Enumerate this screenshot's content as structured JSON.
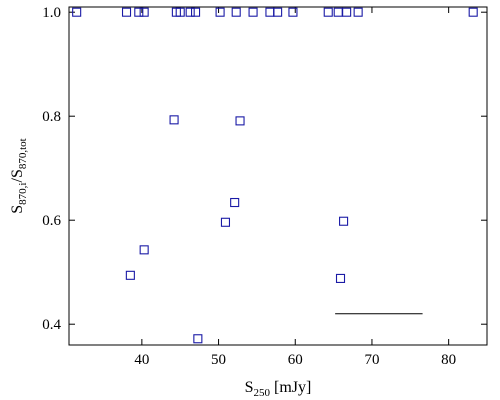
{
  "chart_data": {
    "type": "scatter",
    "xlabel": {
      "main": "S",
      "sub": "250",
      "tail": " [mJy]"
    },
    "ylabel": {
      "main1": "S",
      "sub1": "870,i",
      "mid": "/S",
      "sub2": "870,tot"
    },
    "xlim": [
      30.5,
      85
    ],
    "ylim": [
      0.36,
      1.01
    ],
    "xticks": [
      40,
      50,
      60,
      70,
      80
    ],
    "yticks": [
      0.4,
      0.6,
      0.8,
      1.0
    ],
    "xtick_labels": [
      "40",
      "50",
      "60",
      "70",
      "80"
    ],
    "ytick_labels": [
      "0.4",
      "0.6",
      "0.8",
      "1.0"
    ],
    "grid": false,
    "marker": "open-square",
    "colors": {
      "marker": "#1a1aa6",
      "axis": "#000000",
      "reference_line": "#000000"
    },
    "points": [
      {
        "x": 31.5,
        "y": 1.0
      },
      {
        "x": 38.0,
        "y": 1.0
      },
      {
        "x": 39.6,
        "y": 1.0
      },
      {
        "x": 40.3,
        "y": 1.0
      },
      {
        "x": 44.5,
        "y": 1.0
      },
      {
        "x": 45.0,
        "y": 1.0
      },
      {
        "x": 46.3,
        "y": 1.0
      },
      {
        "x": 47.0,
        "y": 1.0
      },
      {
        "x": 50.2,
        "y": 1.0
      },
      {
        "x": 52.3,
        "y": 1.0
      },
      {
        "x": 54.5,
        "y": 1.0
      },
      {
        "x": 56.7,
        "y": 1.0
      },
      {
        "x": 57.7,
        "y": 1.0
      },
      {
        "x": 59.7,
        "y": 1.0
      },
      {
        "x": 64.3,
        "y": 1.0
      },
      {
        "x": 65.6,
        "y": 1.0
      },
      {
        "x": 66.7,
        "y": 1.0
      },
      {
        "x": 68.2,
        "y": 1.0
      },
      {
        "x": 83.2,
        "y": 1.0
      },
      {
        "x": 44.2,
        "y": 0.793
      },
      {
        "x": 52.8,
        "y": 0.791
      },
      {
        "x": 52.1,
        "y": 0.634
      },
      {
        "x": 50.9,
        "y": 0.596
      },
      {
        "x": 66.3,
        "y": 0.598
      },
      {
        "x": 40.3,
        "y": 0.543
      },
      {
        "x": 38.5,
        "y": 0.494
      },
      {
        "x": 65.9,
        "y": 0.488
      },
      {
        "x": 47.3,
        "y": 0.372
      }
    ],
    "reference_line": {
      "x_start": 65.2,
      "x_end": 76.6,
      "y": 0.42
    }
  }
}
